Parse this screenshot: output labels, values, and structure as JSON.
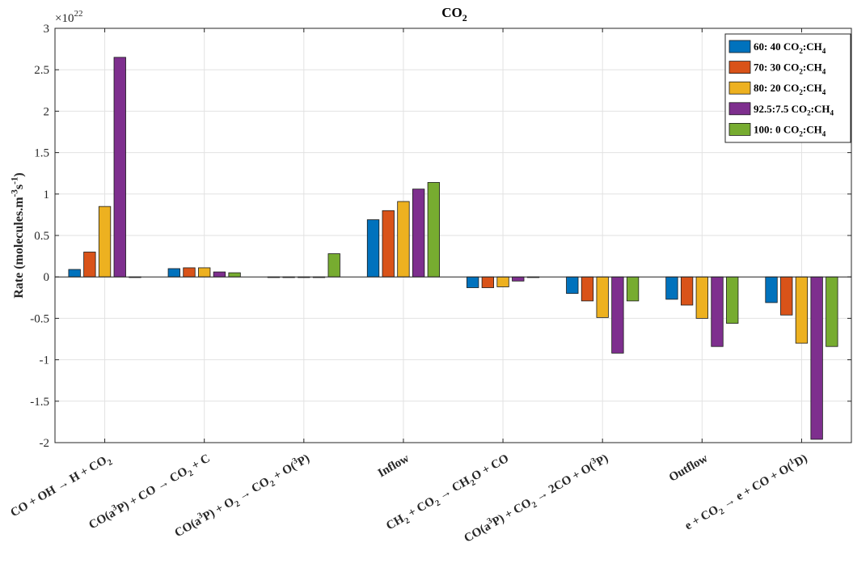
{
  "chart_data": {
    "type": "bar",
    "title": "CO",
    "title_sub": "2",
    "ylabel_parts": [
      {
        "t": "Rate (molecules.m",
        "s": "n"
      },
      {
        "t": "-3",
        "s": "sup"
      },
      {
        "t": "s",
        "s": "n"
      },
      {
        "t": "-1",
        "s": "sup"
      },
      {
        "t": ")",
        "s": "n"
      }
    ],
    "exponent_base": "×10",
    "exponent_power": "22",
    "ylim": [
      -2,
      3
    ],
    "yticks": [
      -2,
      -1.5,
      -1,
      -0.5,
      0,
      0.5,
      1,
      1.5,
      2,
      2.5,
      3
    ],
    "ytick_labels": [
      "-2",
      "-1.5",
      "-1",
      "-0.5",
      "0",
      "0.5",
      "1",
      "1.5",
      "2",
      "2.5",
      "3"
    ],
    "grid": true,
    "legend_position": "top-right",
    "categories": [
      [
        {
          "t": "CO + OH → H + CO",
          "s": "n"
        },
        {
          "t": "2",
          "s": "sub"
        }
      ],
      [
        {
          "t": "CO(a",
          "s": "n"
        },
        {
          "t": "3",
          "s": "sup"
        },
        {
          "t": "P) + CO → CO",
          "s": "n"
        },
        {
          "t": "2",
          "s": "sub"
        },
        {
          "t": " + C",
          "s": "n"
        }
      ],
      [
        {
          "t": "CO(a",
          "s": "n"
        },
        {
          "t": "3",
          "s": "sup"
        },
        {
          "t": "P) + O",
          "s": "n"
        },
        {
          "t": "2",
          "s": "sub"
        },
        {
          "t": " → CO",
          "s": "n"
        },
        {
          "t": "2",
          "s": "sub"
        },
        {
          "t": " + O(",
          "s": "n"
        },
        {
          "t": "3",
          "s": "sup"
        },
        {
          "t": "P)",
          "s": "n"
        }
      ],
      [
        {
          "t": "Inflow",
          "s": "n"
        }
      ],
      [
        {
          "t": "CH",
          "s": "n"
        },
        {
          "t": "2",
          "s": "sub"
        },
        {
          "t": " + CO",
          "s": "n"
        },
        {
          "t": "2",
          "s": "sub"
        },
        {
          "t": " → CH",
          "s": "n"
        },
        {
          "t": "2",
          "s": "sub"
        },
        {
          "t": "O + CO",
          "s": "n"
        }
      ],
      [
        {
          "t": "CO(a",
          "s": "n"
        },
        {
          "t": "3",
          "s": "sup"
        },
        {
          "t": "P) + CO",
          "s": "n"
        },
        {
          "t": "2",
          "s": "sub"
        },
        {
          "t": " → 2CO + O(",
          "s": "n"
        },
        {
          "t": "3",
          "s": "sup"
        },
        {
          "t": "P)",
          "s": "n"
        }
      ],
      [
        {
          "t": "Outflow",
          "s": "n"
        }
      ],
      [
        {
          "t": "e + CO",
          "s": "n"
        },
        {
          "t": "2",
          "s": "sub"
        },
        {
          "t": " → e + CO + O(",
          "s": "n"
        },
        {
          "t": "1",
          "s": "sup"
        },
        {
          "t": "D)",
          "s": "n"
        }
      ]
    ],
    "series": [
      {
        "name_parts": [
          {
            "t": "60: 40 CO",
            "s": "n"
          },
          {
            "t": "2",
            "s": "sub"
          },
          {
            "t": ":CH",
            "s": "n"
          },
          {
            "t": "4",
            "s": "sub"
          }
        ],
        "color": "#0072BD",
        "values": [
          0.09,
          0.1,
          0.0,
          0.69,
          -0.13,
          -0.2,
          -0.27,
          -0.31
        ]
      },
      {
        "name_parts": [
          {
            "t": "70: 30 CO",
            "s": "n"
          },
          {
            "t": "2",
            "s": "sub"
          },
          {
            "t": ":CH",
            "s": "n"
          },
          {
            "t": "4",
            "s": "sub"
          }
        ],
        "color": "#D95319",
        "values": [
          0.3,
          0.11,
          0.0,
          0.8,
          -0.13,
          -0.29,
          -0.34,
          -0.46
        ]
      },
      {
        "name_parts": [
          {
            "t": "80: 20 CO",
            "s": "n"
          },
          {
            "t": "2",
            "s": "sub"
          },
          {
            "t": ":CH",
            "s": "n"
          },
          {
            "t": "4",
            "s": "sub"
          }
        ],
        "color": "#EDB120",
        "values": [
          0.85,
          0.11,
          0.0,
          0.91,
          -0.12,
          -0.49,
          -0.5,
          -0.8
        ]
      },
      {
        "name_parts": [
          {
            "t": "92.5:7.5 CO",
            "s": "n"
          },
          {
            "t": "2",
            "s": "sub"
          },
          {
            "t": ":CH",
            "s": "n"
          },
          {
            "t": "4",
            "s": "sub"
          }
        ],
        "color": "#7E2F8E",
        "values": [
          2.65,
          0.06,
          0.0,
          1.06,
          -0.05,
          -0.92,
          -0.84,
          -1.96
        ]
      },
      {
        "name_parts": [
          {
            "t": "100:  0 CO",
            "s": "n"
          },
          {
            "t": "2",
            "s": "sub"
          },
          {
            "t": ":CH",
            "s": "n"
          },
          {
            "t": "4",
            "s": "sub"
          }
        ],
        "color": "#77AC30",
        "values": [
          0.0,
          0.05,
          0.28,
          1.14,
          0.0,
          -0.29,
          -0.56,
          -0.84
        ]
      }
    ]
  }
}
